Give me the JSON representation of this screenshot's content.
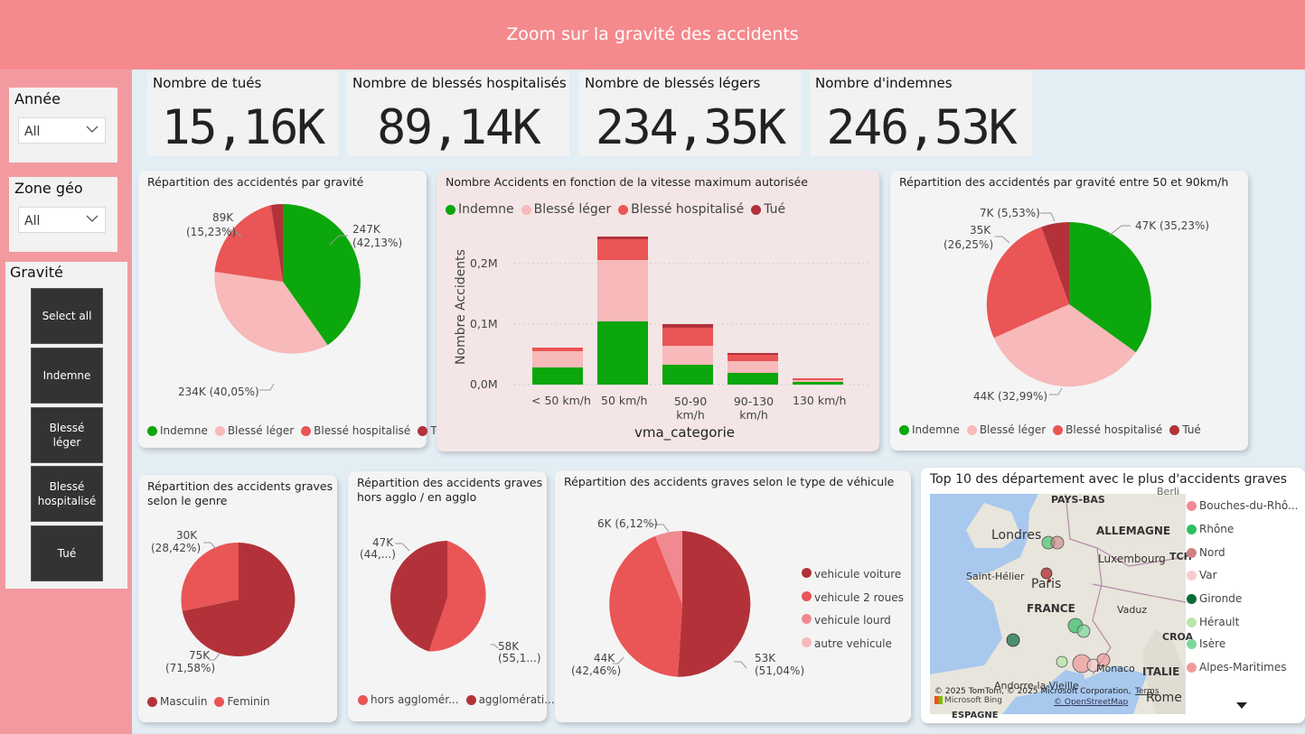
{
  "header": {
    "title": "Zoom sur la gravité des accidents"
  },
  "slicers": {
    "annee": {
      "title": "Année",
      "value": "All"
    },
    "zone": {
      "title": "Zone géo",
      "value": "All"
    },
    "gravite": {
      "title": "Gravité",
      "buttons": [
        "Select all",
        "Indemne",
        "Blessé léger",
        "Blessé hospitalisé",
        "Tué"
      ]
    }
  },
  "kpis": [
    {
      "label": "Nombre de tués",
      "value": "15,16K"
    },
    {
      "label": "Nombre de blessés hospitalisés",
      "value": "89,14K"
    },
    {
      "label": "Nombre de blessés légers",
      "value": "234,35K"
    },
    {
      "label": "Nombre d'indemnes",
      "value": "246,53K"
    }
  ],
  "colors": {
    "indemne": "#0ca70c",
    "leger": "#f7b9b9",
    "hospitalise": "#ea5556",
    "tue": "#b3323a",
    "accent_header": "#f48a8e"
  },
  "pie_gravite": {
    "title": "Répartition des accidentés par gravité",
    "labels": {
      "indemne": "247K\n(42,13%)",
      "leger": "234K (40,05%)",
      "hospitalise": "89K\n(15,23%)"
    },
    "legend": [
      "Indemne",
      "Blessé léger",
      "Blessé hospitalisé",
      "Tué"
    ]
  },
  "bar_vitesse": {
    "title": "Nombre Accidents en fonction de la vitesse maximum autorisée",
    "legend": [
      "Indemne",
      "Blessé léger",
      "Blessé hospitalisé",
      "Tué"
    ],
    "ylabel": "Nombre Accidents",
    "xlabel": "vma_categorie",
    "yticks": [
      "0,0M",
      "0,1M",
      "0,2M"
    ],
    "categories": [
      "< 50 km/h",
      "50 km/h",
      "50-90\nkm/h",
      "90-130\nkm/h",
      "130 km/h"
    ]
  },
  "pie_50_90": {
    "title": "Répartition des accidentés par gravité entre 50 et 90km/h",
    "labels": {
      "indemne": "47K (35,23%)",
      "leger": "44K (32,99%)",
      "hospitalise": "35K\n(26,25%)",
      "tue": "7K (5,53%)"
    },
    "legend": [
      "Indemne",
      "Blessé léger",
      "Blessé hospitalisé",
      "Tué"
    ]
  },
  "pie_genre": {
    "title": "Répartition des accidents graves\nselon le genre",
    "labels": {
      "masculin": "75K\n(71,58%)",
      "feminin": "30K\n(28,42%)"
    },
    "legend": [
      "Masculin",
      "Feminin"
    ]
  },
  "pie_agglo": {
    "title": "Répartition des accidents graves\nhors agglo / en agglo",
    "labels": {
      "hors": "58K\n(55,1...)",
      "agglo": "47K\n(44,...)"
    },
    "legend": [
      "hors agglomér...",
      "agglomérati..."
    ]
  },
  "pie_vehicule": {
    "title": "Répartition des accidents graves selon le type de véhicule",
    "labels": {
      "voiture": "53K\n(51,04%)",
      "deux_roues": "44K\n(42,46%)",
      "autre": "6K (6,12%)"
    },
    "legend": [
      "vehicule voiture",
      "vehicule 2 roues",
      "vehicule lourd",
      "autre vehicule"
    ]
  },
  "map": {
    "title": "Top 10 des département avec le plus d'accidents graves",
    "place_labels": [
      "PAYS-BAS",
      "ALLEMAGNE",
      "Londres",
      "Luxembourg",
      "Saint-Hélier",
      "Paris",
      "FRANCE",
      "Vaduz",
      "CROA",
      "Monaco",
      "ITALIE",
      "Rome",
      "Andorre-la-Vieille",
      "TCH",
      "Berli",
      "ESPAGNE"
    ],
    "attribution": "© 2025 TomTom, © 2025 Microsoft Corporation,",
    "terms": "Terms",
    "osm": "© OpenStreetMap",
    "bing": "Microsoft Bing",
    "legend": [
      {
        "name": "Bouches-du-Rhô...",
        "color": "#f08a90"
      },
      {
        "name": "Rhône",
        "color": "#2fbf5f"
      },
      {
        "name": "Nord",
        "color": "#cf8080"
      },
      {
        "name": "Var",
        "color": "#f8cccc"
      },
      {
        "name": "Gironde",
        "color": "#0a6b3a"
      },
      {
        "name": "Hérault",
        "color": "#b9e6a8"
      },
      {
        "name": "Isère",
        "color": "#7fd69a"
      },
      {
        "name": "Alpes-Maritimes",
        "color": "#f19a9a"
      }
    ]
  }
}
